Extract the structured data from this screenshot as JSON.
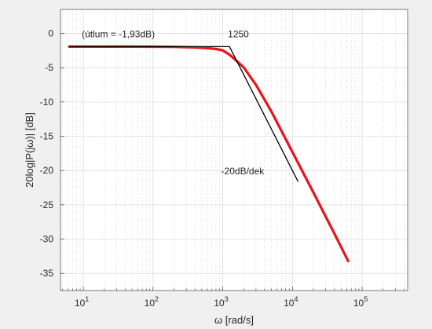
{
  "chart_data": {
    "type": "line",
    "x_scale": "log",
    "xlim": [
      4.7,
      450000
    ],
    "ylim": [
      -37.5,
      3.5
    ],
    "grid": true,
    "minor_grid": true,
    "xlabel": "ω [rad/s]",
    "ylabel": "20log|P(jω)| [dB]",
    "x_ticks": [
      {
        "value": 10,
        "mantissa": "10",
        "exponent": "1"
      },
      {
        "value": 100,
        "mantissa": "10",
        "exponent": "2"
      },
      {
        "value": 1000,
        "mantissa": "10",
        "exponent": "3"
      },
      {
        "value": 10000,
        "mantissa": "10",
        "exponent": "4"
      },
      {
        "value": 100000,
        "mantissa": "10",
        "exponent": "5"
      }
    ],
    "y_ticks": [
      0,
      -5,
      -10,
      -15,
      -20,
      -25,
      -30,
      -35
    ],
    "series": [
      {
        "id": "magnitude",
        "color": "#e8141b",
        "dc_gain_db": -1.93,
        "corner_frequency": 1250,
        "x": [
          6.3,
          10,
          20,
          50,
          100,
          200,
          400,
          600,
          800,
          1000,
          1250,
          1500,
          2000,
          3000,
          5000,
          10000,
          20000,
          40000,
          63000
        ],
        "y": [
          -1.93,
          -1.93,
          -1.93,
          -1.93,
          -1.94,
          -1.96,
          -2.04,
          -2.14,
          -2.27,
          -2.47,
          -3.1,
          -3.8,
          -4.96,
          -7.5,
          -11.4,
          -17.3,
          -23.2,
          -29.2,
          -33.2
        ]
      },
      {
        "id": "asymptote",
        "color": "#000000",
        "x": [
          6.3,
          1250,
          12000
        ],
        "y": [
          -1.93,
          -1.93,
          -21.57
        ]
      }
    ],
    "annotations": [
      {
        "text": "(útlum = -1,93dB)",
        "x": 10,
        "y": 0
      },
      {
        "text": "1250",
        "x": 1250,
        "y": 0
      },
      {
        "text": "-20dB/dek",
        "x": 1000,
        "y": -20
      }
    ]
  }
}
